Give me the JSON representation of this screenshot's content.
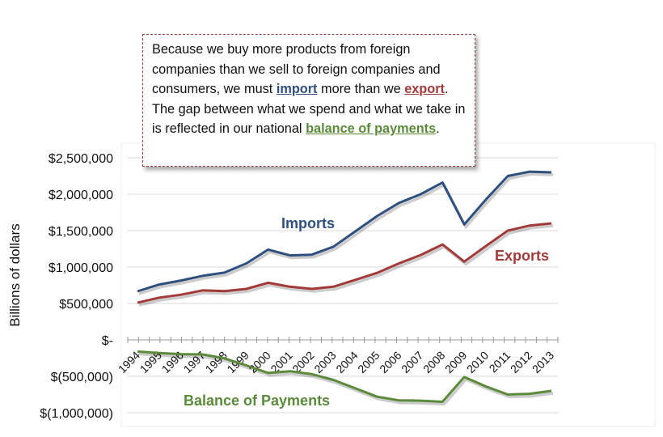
{
  "chart_data": {
    "type": "line",
    "ylabel": "Billions of dollars",
    "x": [
      "1994",
      "1995",
      "1996",
      "1997",
      "1998",
      "1999",
      "2000",
      "2001",
      "2002",
      "2003",
      "2004",
      "2005",
      "2006",
      "2007",
      "2008",
      "2009",
      "2010",
      "2011",
      "2012",
      "2013"
    ],
    "yticks": [
      "$2,500,000",
      "$2,000,000",
      "$1,500,000",
      "$1,000,000",
      "$500,000",
      "$-",
      "$(500,000)",
      "$(1,000,000)"
    ],
    "ylim": [
      -1000000,
      2500000
    ],
    "grid": true,
    "series": [
      {
        "name": "Imports",
        "color": "#2f507e",
        "values": [
          667000,
          760000,
          815000,
          880000,
          925000,
          1050000,
          1240000,
          1160000,
          1170000,
          1280000,
          1490000,
          1700000,
          1880000,
          2000000,
          2160000,
          1585000,
          1930000,
          2250000,
          2310000,
          2300000
        ]
      },
      {
        "name": "Exports",
        "color": "#a33a3a",
        "values": [
          510000,
          580000,
          620000,
          680000,
          670000,
          700000,
          785000,
          730000,
          700000,
          730000,
          825000,
          920000,
          1050000,
          1165000,
          1310000,
          1075000,
          1290000,
          1500000,
          1570000,
          1600000
        ]
      },
      {
        "name": "Balance of Payments",
        "color": "#5a8a3a",
        "values": [
          -160000,
          -180000,
          -195000,
          -200000,
          -255000,
          -350000,
          -455000,
          -430000,
          -470000,
          -550000,
          -665000,
          -780000,
          -830000,
          -835000,
          -850000,
          -510000,
          -640000,
          -750000,
          -740000,
          -700000
        ]
      }
    ]
  },
  "callout": {
    "t1": "Because we buy more products from foreign companies than we sell to foreign companies and consumers, we must ",
    "import": "import",
    "t2": " more than we ",
    "export": "export",
    "t3": ". The gap between what we spend and what we take in is reflected in our national ",
    "bop": "balance of payments",
    "t4": "."
  }
}
